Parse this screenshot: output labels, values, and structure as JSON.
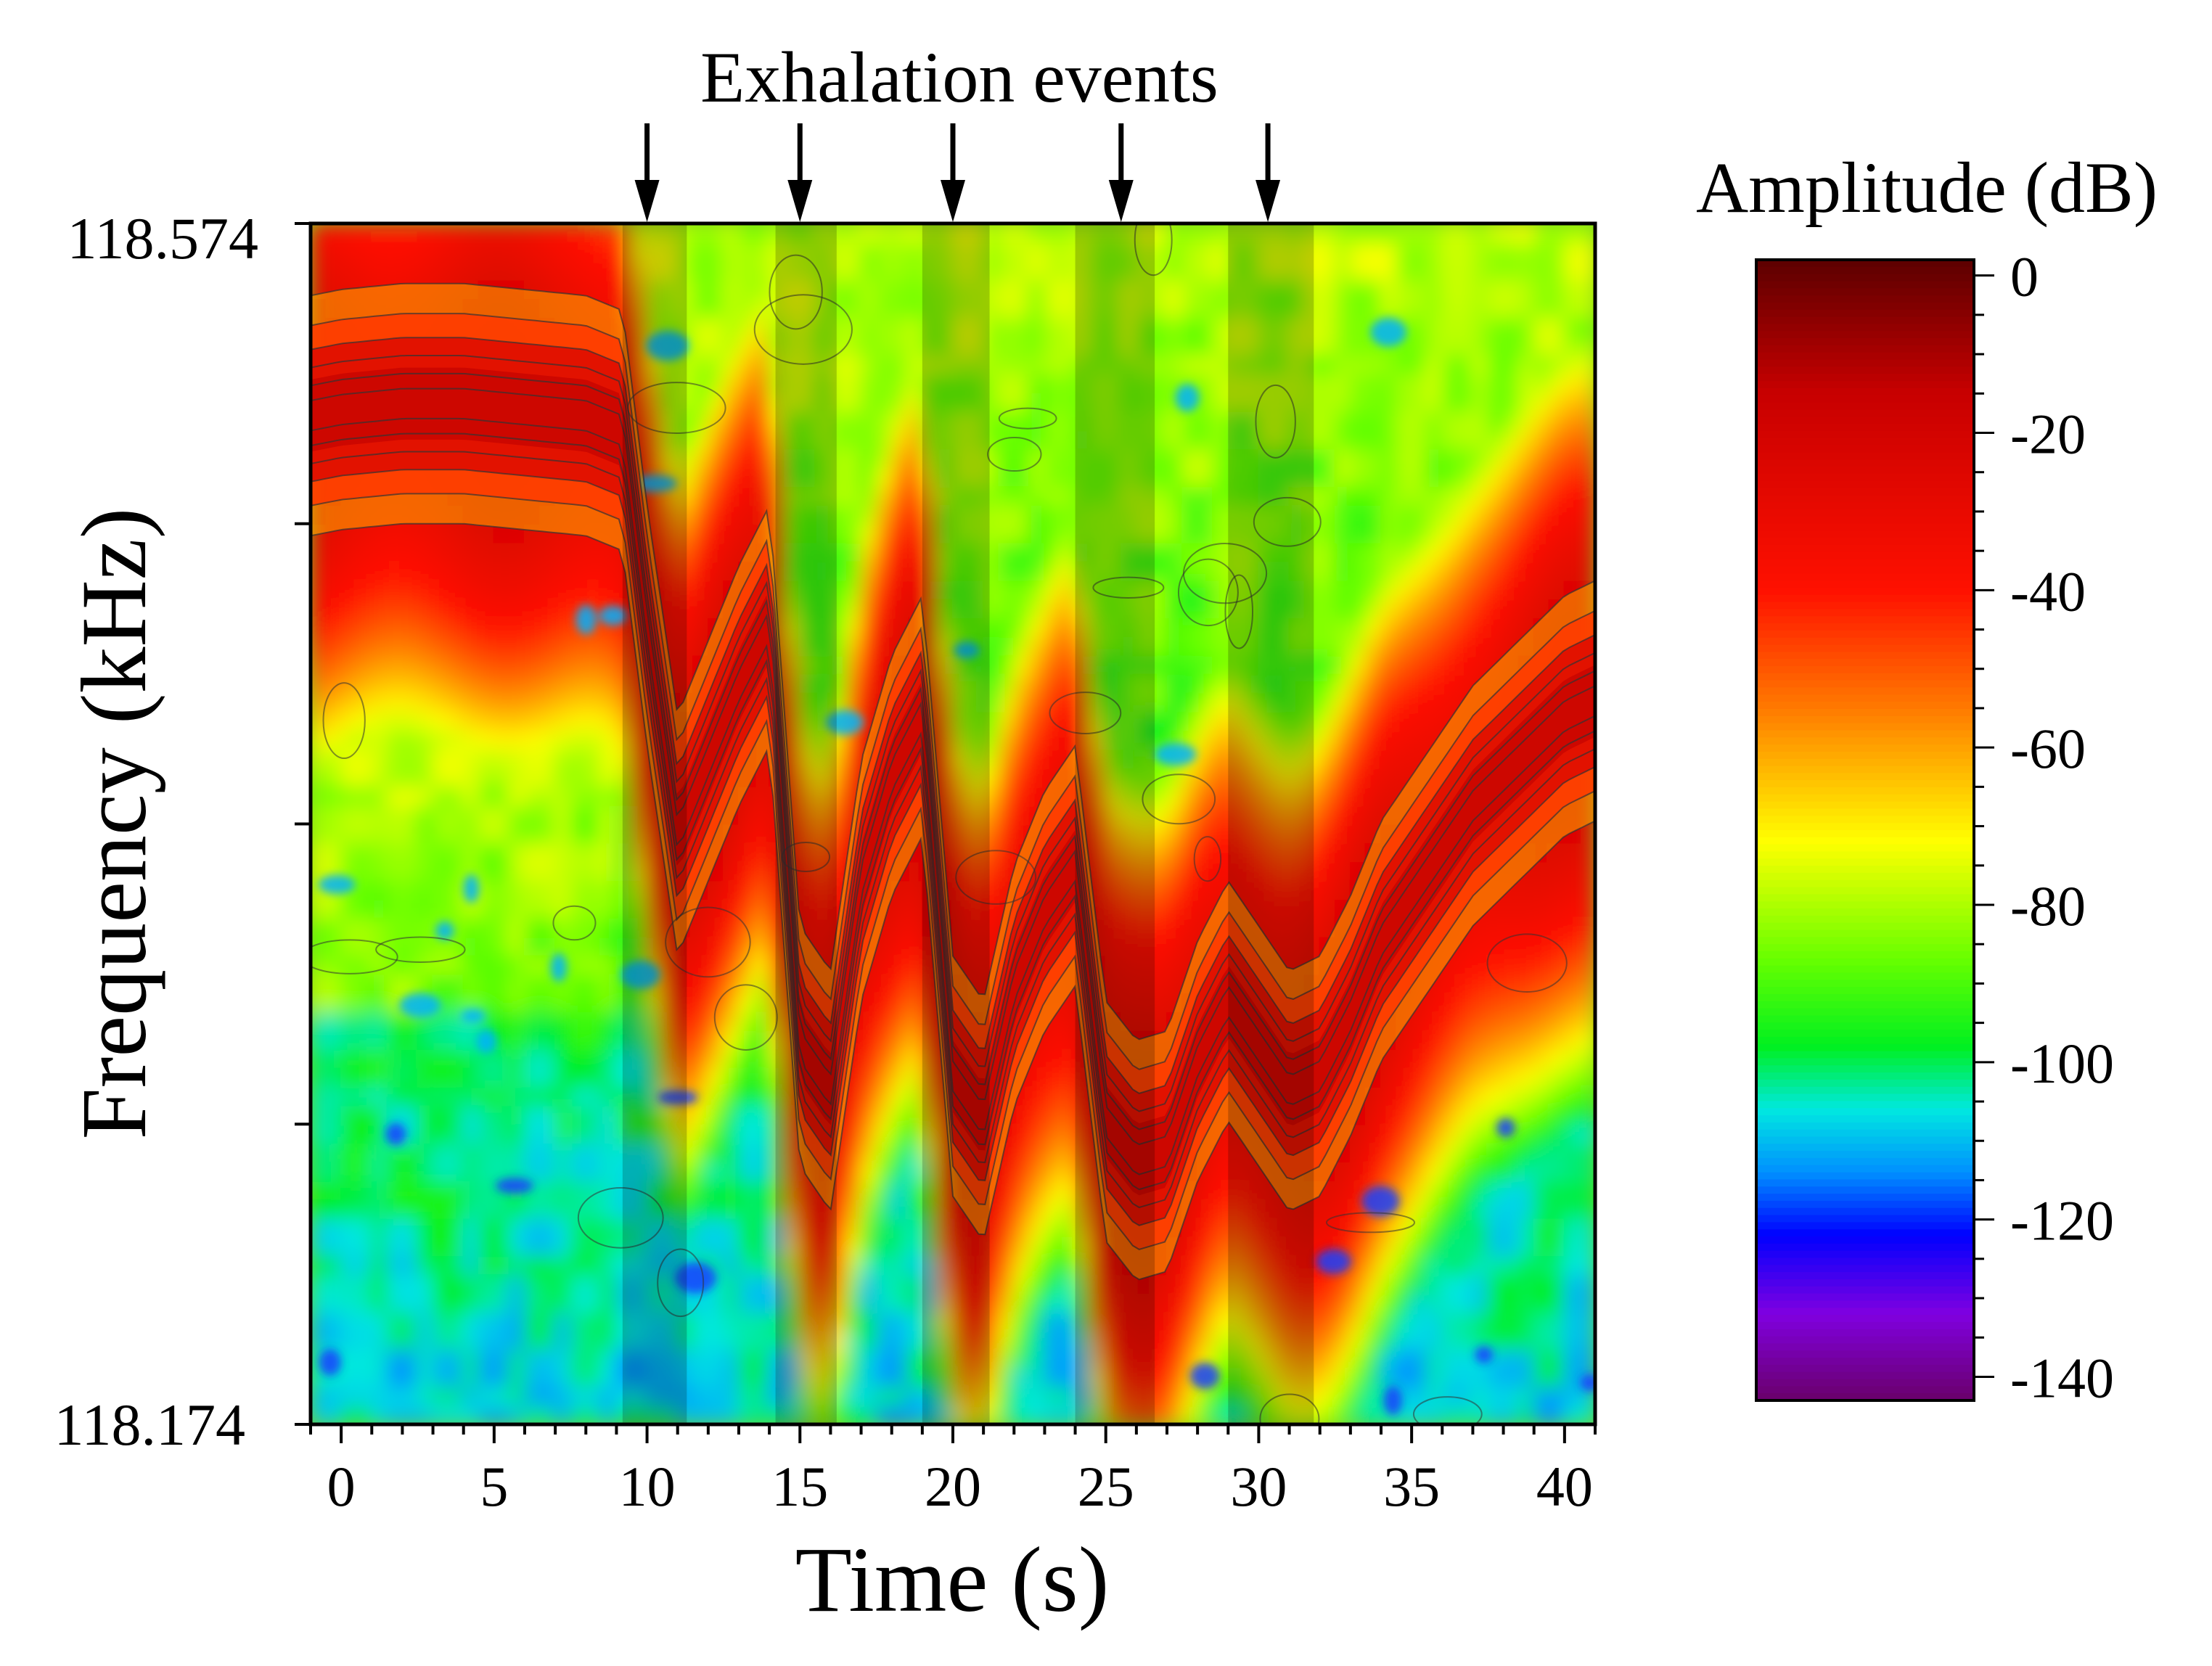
{
  "chart_data": {
    "type": "heatmap",
    "title": "",
    "annotation_title": "Exhalation events",
    "xlabel": "Time (s)",
    "ylabel": "Frequency (kHz)",
    "xlim": [
      -1,
      41
    ],
    "ylim": [
      118.174,
      118.574
    ],
    "x_ticks": [
      "0",
      "5",
      "10",
      "15",
      "20",
      "25",
      "30",
      "35",
      "40"
    ],
    "x_tick_values": [
      0,
      5,
      10,
      15,
      20,
      25,
      30,
      35,
      40
    ],
    "y_tick_labels": [
      "118.574",
      "118.174"
    ],
    "y_tick_values": [
      118.574,
      118.174
    ],
    "y_minor_tick_values": [
      118.274,
      118.374,
      118.474
    ],
    "exhalation_event_times": [
      10,
      15,
      20,
      25.5,
      30.3
    ],
    "shaded_intervals": [
      [
        9.2,
        11.3
      ],
      [
        14.2,
        16.2
      ],
      [
        19,
        21.2
      ],
      [
        24,
        26.6
      ],
      [
        29,
        31.8
      ]
    ],
    "dominant_ridge": {
      "note": "approximate center frequency of the strongest (red, about -20 to -40 dB) band over time",
      "time": [
        -1,
        0,
        2,
        4,
        6,
        8,
        9.2,
        10,
        11,
        12,
        13,
        14,
        15,
        16,
        17,
        18,
        19,
        20,
        21,
        22,
        23,
        24,
        25,
        26,
        27,
        28,
        29,
        30,
        31,
        32,
        33,
        34,
        35,
        36,
        37,
        38,
        39,
        40,
        41
      ],
      "frequency": [
        118.51,
        118.512,
        118.514,
        118.514,
        118.512,
        118.51,
        118.505,
        118.44,
        118.37,
        118.395,
        118.42,
        118.44,
        118.3,
        118.285,
        118.355,
        118.39,
        118.41,
        118.29,
        118.275,
        118.32,
        118.345,
        118.36,
        118.275,
        118.262,
        118.265,
        118.295,
        118.315,
        118.3,
        118.285,
        118.29,
        118.31,
        118.335,
        118.35,
        118.365,
        118.38,
        118.39,
        118.4,
        118.41,
        118.415
      ]
    },
    "colorbar": {
      "title": "Amplitude (dB)",
      "ticks": [
        "0",
        "-20",
        "-40",
        "-60",
        "-80",
        "-100",
        "-120",
        "-140"
      ],
      "tick_values": [
        0,
        -20,
        -40,
        -60,
        -80,
        -100,
        -120,
        -140
      ],
      "range": [
        -143,
        2
      ],
      "colormap_stops": [
        {
          "value": 2,
          "color": "#5c0000"
        },
        {
          "value": -15,
          "color": "#c80000"
        },
        {
          "value": -40,
          "color": "#ff1000"
        },
        {
          "value": -55,
          "color": "#ff7a00"
        },
        {
          "value": -72,
          "color": "#ffff00"
        },
        {
          "value": -87,
          "color": "#66ff00"
        },
        {
          "value": -98,
          "color": "#00f020"
        },
        {
          "value": -106,
          "color": "#00e8e0"
        },
        {
          "value": -114,
          "color": "#0090ff"
        },
        {
          "value": -122,
          "color": "#0000ff"
        },
        {
          "value": -132,
          "color": "#8000e0"
        },
        {
          "value": -143,
          "color": "#6a006a"
        }
      ]
    }
  }
}
